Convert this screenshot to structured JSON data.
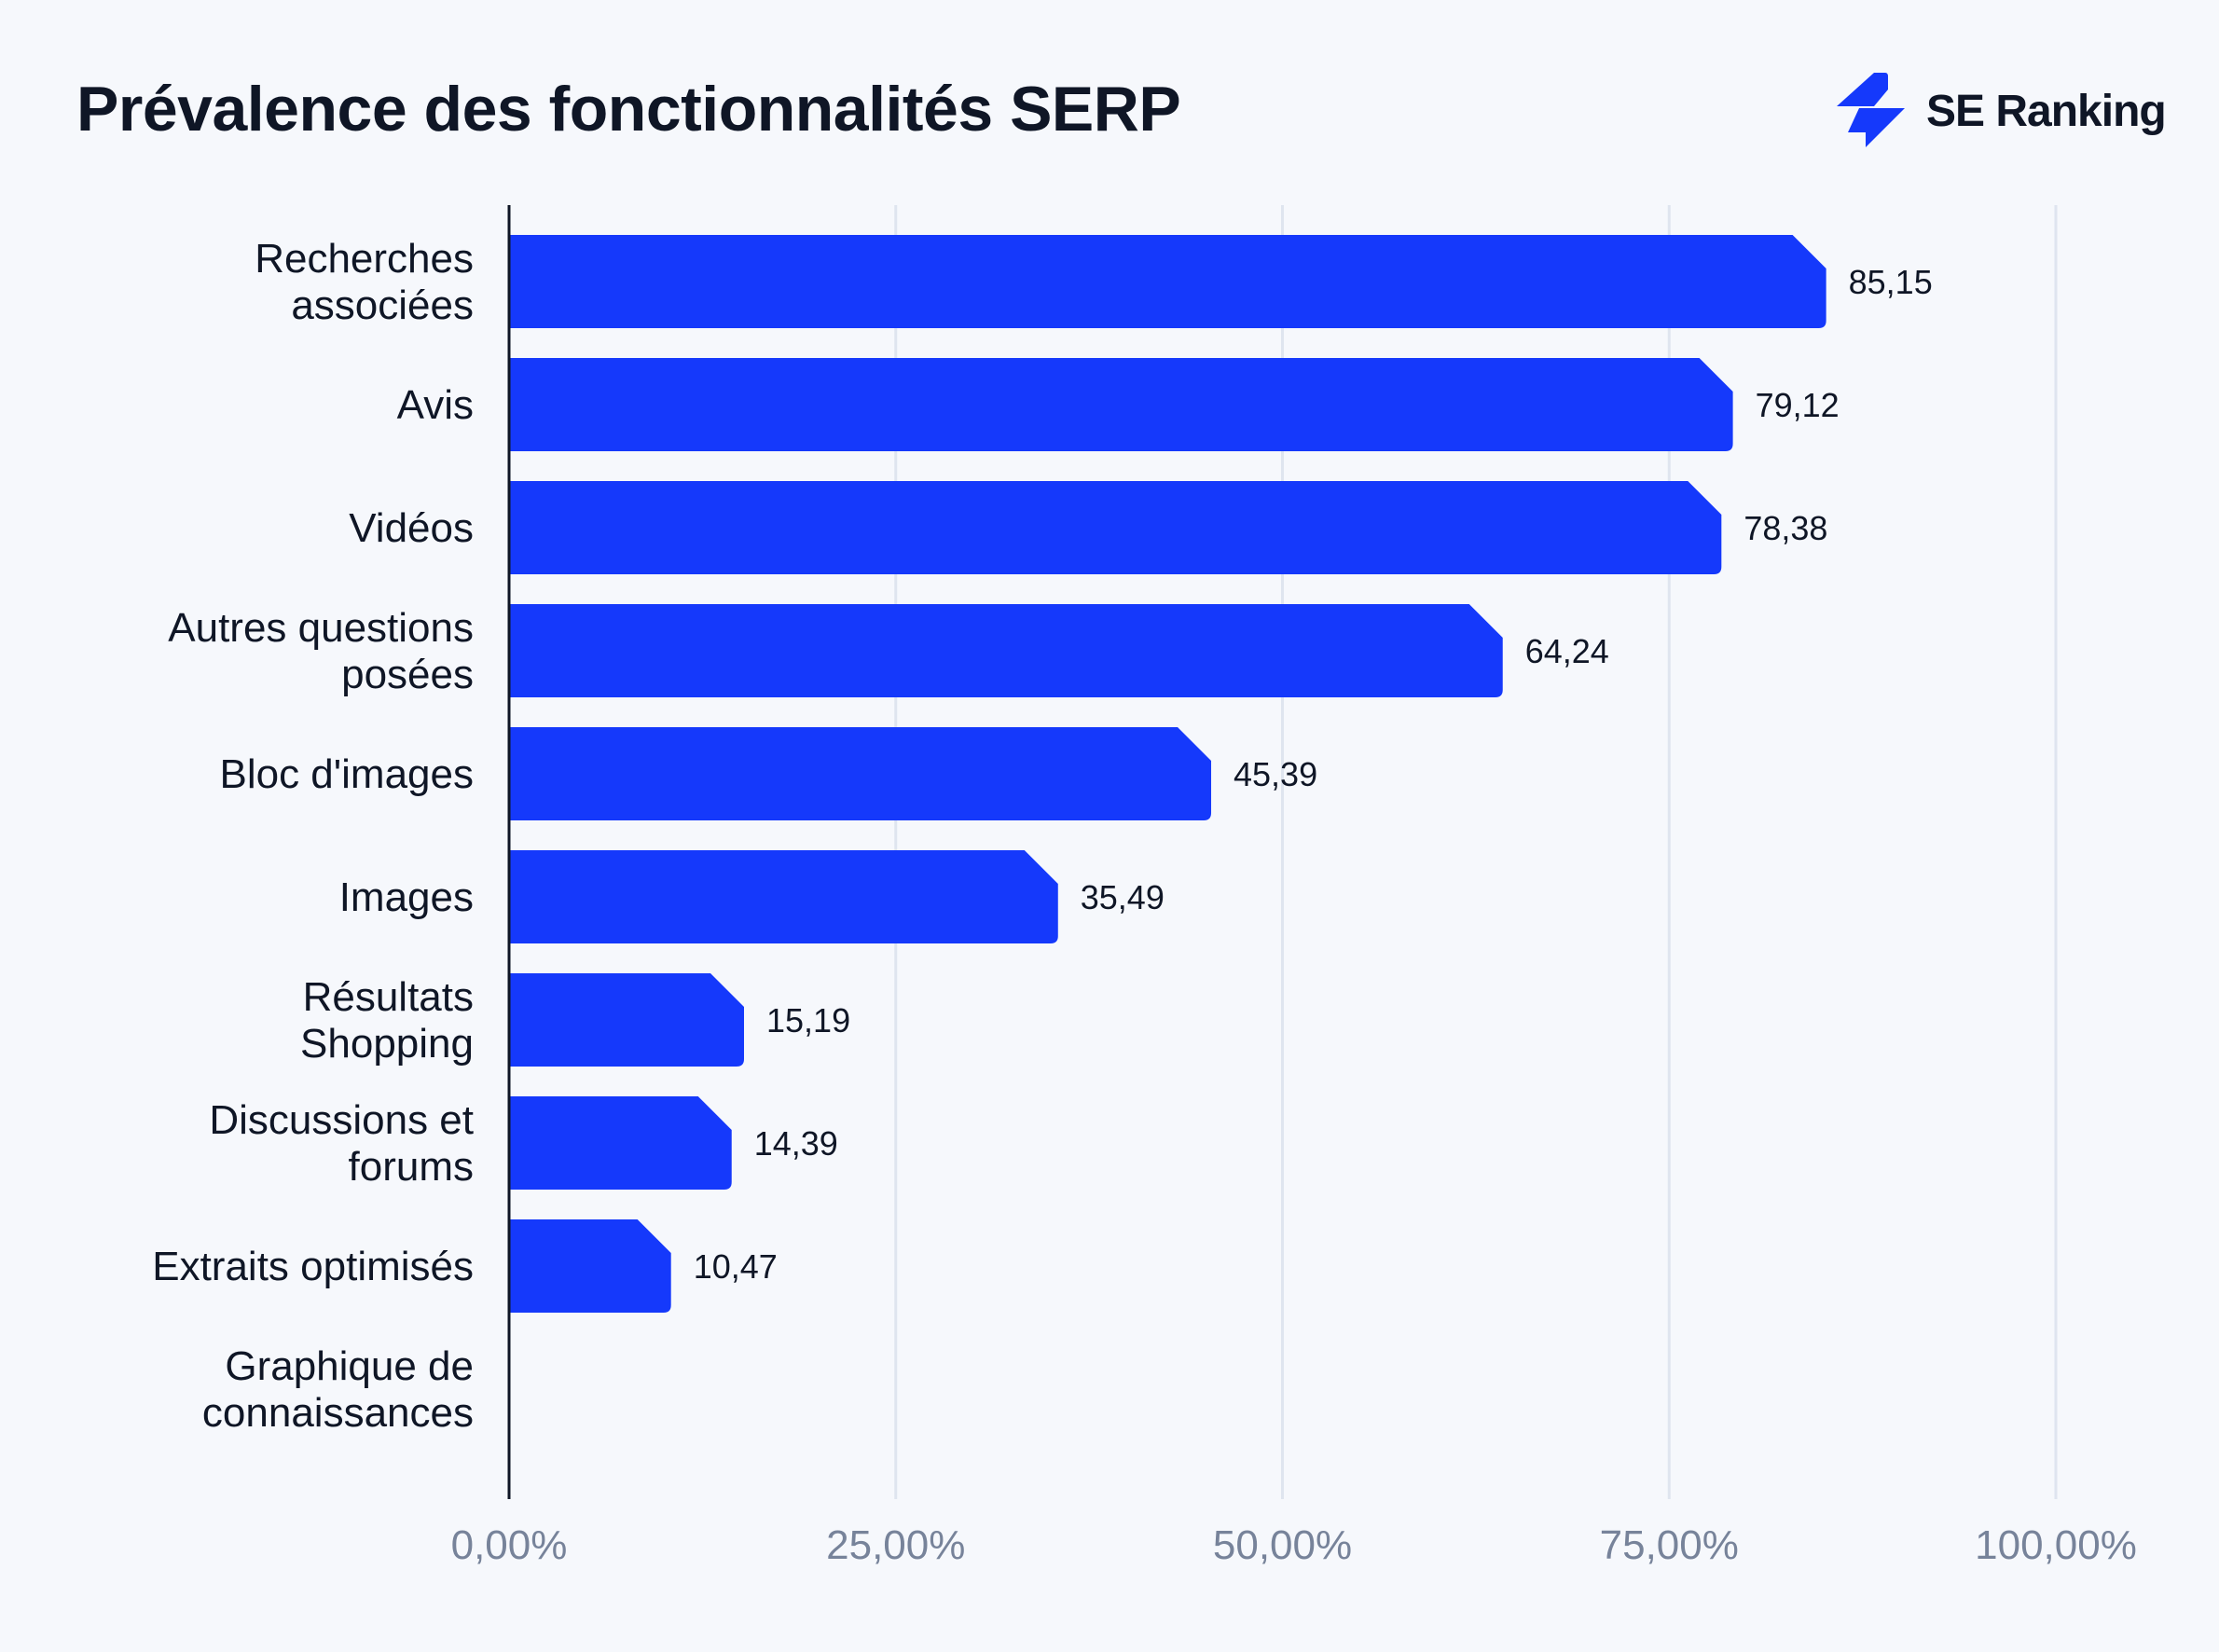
{
  "header": {
    "title": "Prévalence des fonctionnalités SERP",
    "logo_text": "SE Ranking",
    "logo_icon": "se-ranking-bolt-icon"
  },
  "chart_data": {
    "type": "bar",
    "orientation": "horizontal",
    "title": "Prévalence des fonctionnalités SERP",
    "categories": [
      [
        "Recherches",
        "associées"
      ],
      [
        "Avis"
      ],
      [
        "Vidéos"
      ],
      [
        "Autres questions",
        "posées"
      ],
      [
        "Bloc d'images"
      ],
      [
        "Images"
      ],
      [
        "Résultats",
        "Shopping"
      ],
      [
        "Discussions et",
        "forums"
      ],
      [
        "Extraits optimisés"
      ],
      [
        "Graphique de",
        "connaissances"
      ]
    ],
    "values": [
      85.15,
      79.12,
      78.38,
      64.24,
      45.39,
      35.49,
      15.19,
      14.39,
      10.47,
      0
    ],
    "data_labels": [
      "85,15",
      "79,12",
      "78,38",
      "64,24",
      "45,39",
      "35,49",
      "15,19",
      "14,39",
      "10,47",
      ""
    ],
    "xlim": [
      0,
      100
    ],
    "x_ticks": [
      0,
      25,
      50,
      75,
      100
    ],
    "x_tick_labels": [
      "0,00%",
      "25,00%",
      "50,00%",
      "75,00%",
      "100,00%"
    ],
    "grid": "vertical",
    "colors": {
      "bar": "#1539fb",
      "grid": "#dfe5ef",
      "axis": "#0f1626",
      "tick": "#77839a",
      "background": "#f6f8fc"
    }
  }
}
